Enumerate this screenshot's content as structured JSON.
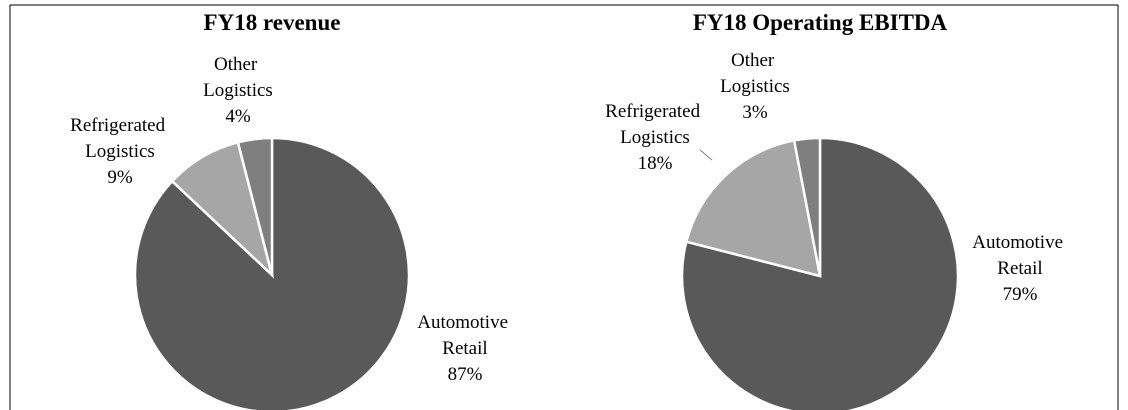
{
  "chart_data": [
    {
      "type": "pie",
      "title": "FY18 revenue",
      "categories": [
        "Automotive Retail",
        "Refrigerated Logistics",
        "Other Logistics"
      ],
      "values": [
        87,
        9,
        4
      ],
      "value_labels": [
        "87%",
        "9%",
        "4%"
      ],
      "colors": [
        "#595959",
        "#a6a6a6",
        "#7f7f7f"
      ]
    },
    {
      "type": "pie",
      "title": "FY18 Operating EBITDA",
      "categories": [
        "Automotive Retail",
        "Refrigerated Logistics",
        "Other Logistics"
      ],
      "values": [
        79,
        18,
        3
      ],
      "value_labels": [
        "79%",
        "18%",
        "3%"
      ],
      "colors": [
        "#595959",
        "#a6a6a6",
        "#7f7f7f"
      ]
    }
  ]
}
